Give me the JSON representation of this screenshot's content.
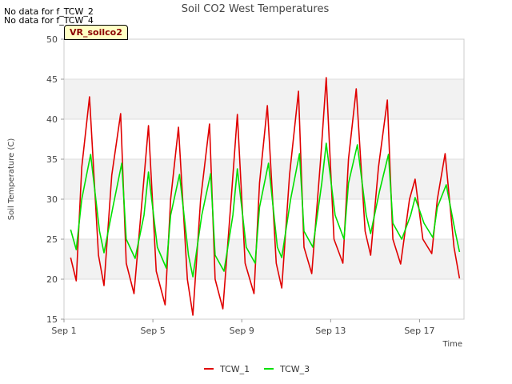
{
  "notices": [
    "No data for f_TCW_2",
    "No data for f_TCW_4"
  ],
  "badge": "VR_soilco2",
  "chart_data": {
    "type": "line",
    "title": "Soil CO2 West Temperatures",
    "xlabel": "Time",
    "ylabel": "Soil Temperature (C)",
    "x_unit": "days since Sep 1",
    "xlim": [
      0,
      18
    ],
    "ylim": [
      15,
      50
    ],
    "yticks": [
      15,
      20,
      25,
      30,
      35,
      40,
      45,
      50
    ],
    "xticks": [
      {
        "pos": 0,
        "label": "Sep 1"
      },
      {
        "pos": 4,
        "label": "Sep 5"
      },
      {
        "pos": 8,
        "label": "Sep 9"
      },
      {
        "pos": 12,
        "label": "Sep 13"
      },
      {
        "pos": 16,
        "label": "Sep 17"
      }
    ],
    "grid": true,
    "legend_position": "bottom-center",
    "series": [
      {
        "name": "TCW_1",
        "color": "#e00000",
        "x": [
          0.3,
          0.55,
          0.8,
          1.15,
          1.55,
          1.8,
          2.15,
          2.55,
          2.8,
          3.15,
          3.55,
          3.8,
          4.15,
          4.55,
          4.8,
          5.15,
          5.55,
          5.8,
          6.15,
          6.55,
          6.8,
          7.15,
          7.55,
          7.8,
          8.15,
          8.55,
          8.8,
          9.15,
          9.55,
          9.8,
          10.15,
          10.55,
          10.8,
          11.15,
          11.55,
          11.8,
          12.15,
          12.55,
          12.8,
          13.15,
          13.55,
          13.8,
          14.15,
          14.55,
          14.8,
          15.15,
          15.55,
          15.8,
          16.15,
          16.55,
          16.8,
          17.15,
          17.55,
          17.8
        ],
        "values": [
          22.7,
          19.8,
          34,
          42.8,
          23,
          19.2,
          33,
          40.7,
          22,
          18.2,
          31,
          39.2,
          21,
          16.8,
          30,
          39,
          20,
          15.5,
          30,
          39.4,
          20,
          16.3,
          31,
          40.6,
          22,
          18.2,
          32,
          41.7,
          22,
          18.9,
          33,
          43.5,
          24,
          20.7,
          35,
          45.2,
          25,
          22,
          35,
          43.8,
          26,
          23,
          34,
          42.4,
          25,
          21.9,
          30,
          32.5,
          25,
          23.2,
          30,
          35.7,
          24,
          20.1
        ]
      },
      {
        "name": "TCW_3",
        "color": "#00e000",
        "x": [
          0.3,
          0.55,
          0.8,
          1.2,
          1.6,
          1.8,
          2.2,
          2.6,
          2.8,
          3.2,
          3.6,
          3.8,
          4.2,
          4.6,
          4.8,
          5.2,
          5.6,
          5.8,
          6.2,
          6.6,
          6.8,
          7.2,
          7.6,
          7.8,
          8.2,
          8.6,
          8.8,
          9.2,
          9.6,
          9.8,
          10.2,
          10.6,
          10.8,
          11.2,
          11.6,
          11.8,
          12.2,
          12.6,
          12.8,
          13.2,
          13.6,
          13.8,
          14.2,
          14.6,
          14.8,
          15.2,
          15.6,
          15.8,
          16.2,
          16.6,
          16.8,
          17.2,
          17.6,
          17.8
        ],
        "values": [
          26.2,
          23.7,
          30,
          35.6,
          26,
          23.3,
          29,
          34.5,
          25,
          22.6,
          28,
          33.4,
          24,
          21.4,
          28,
          33.1,
          23,
          20.3,
          28,
          33.2,
          23,
          21,
          28,
          33.8,
          24,
          22,
          29,
          34.5,
          24,
          22.7,
          30,
          35.7,
          26,
          24,
          32,
          37,
          28,
          25,
          32,
          36.8,
          28,
          25.7,
          31,
          35.6,
          27,
          25,
          28,
          30.2,
          27,
          25.2,
          29,
          31.8,
          26,
          23.4
        ]
      }
    ]
  }
}
